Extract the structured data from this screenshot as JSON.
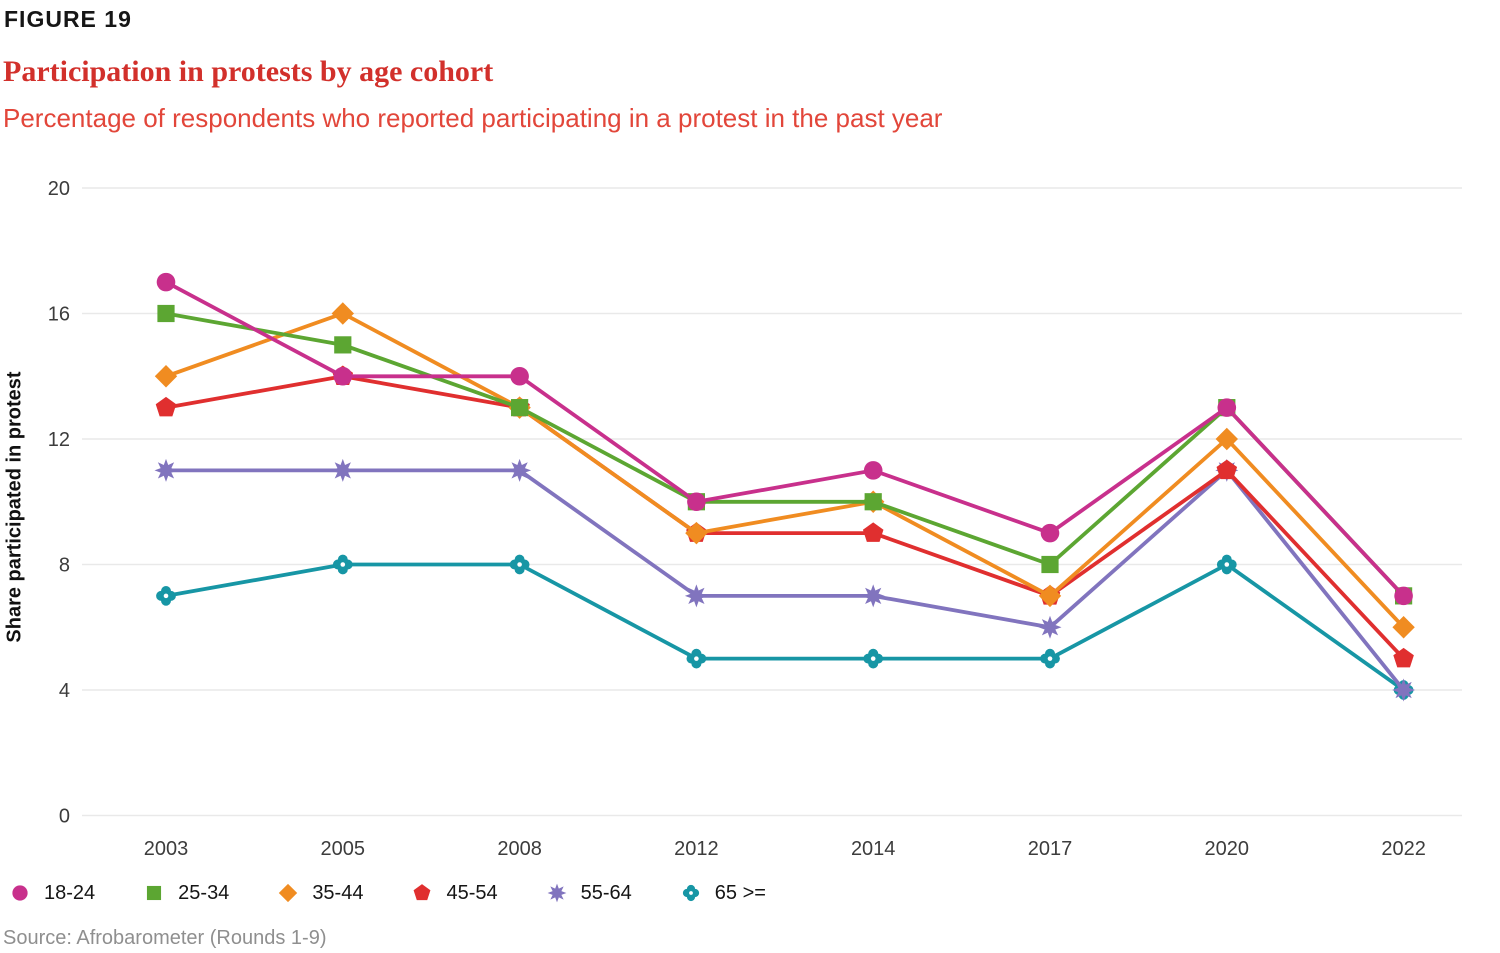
{
  "figure_label": "FIGURE 19",
  "title": "Participation in protests by age cohort",
  "subtitle": "Percentage of respondents who reported participating in a protest in the past year",
  "source": "Source: Afrobarometer (Rounds 1-9)",
  "colors": {
    "title_red": "#d2302b",
    "subtitle_red": "#e2463a",
    "grid": "#e9e9e9",
    "axis_text": "#3c3c3c",
    "source_gray": "#8f8f8f"
  },
  "chart_data": {
    "type": "line",
    "title": "Participation in protests by age cohort",
    "subtitle": "Percentage of respondents who reported participating in a protest in the past year",
    "x": [
      "2003",
      "2005",
      "2008",
      "2012",
      "2014",
      "2017",
      "2020",
      "2022"
    ],
    "xlabel": "",
    "ylabel": "Share participated in protest",
    "ylim": [
      0,
      20
    ],
    "yticks": [
      0,
      4,
      8,
      12,
      16,
      20
    ],
    "grid": true,
    "legend_position": "bottom-left",
    "series": [
      {
        "name": "18-24",
        "marker": "circle",
        "marker_icon": "circle-marker-icon",
        "color": "#c8308c",
        "values": [
          17,
          14,
          14,
          10,
          11,
          9,
          13,
          7
        ]
      },
      {
        "name": "25-34",
        "marker": "square",
        "marker_icon": "square-marker-icon",
        "color": "#5ca632",
        "values": [
          16,
          15,
          13,
          10,
          10,
          8,
          13,
          7
        ]
      },
      {
        "name": "35-44",
        "marker": "diamond",
        "marker_icon": "diamond-marker-icon",
        "color": "#f08c21",
        "values": [
          14,
          16,
          13,
          9,
          10,
          7,
          12,
          6
        ]
      },
      {
        "name": "45-54",
        "marker": "pentagon",
        "marker_icon": "pentagon-marker-icon",
        "color": "#e02f2f",
        "values": [
          13,
          14,
          13,
          9,
          9,
          7,
          11,
          5
        ]
      },
      {
        "name": "55-64",
        "marker": "star8",
        "marker_icon": "star-marker-icon",
        "color": "#8174be",
        "values": [
          11,
          11,
          11,
          7,
          7,
          6,
          11,
          4
        ]
      },
      {
        "name": "65 >=",
        "marker": "clover",
        "marker_icon": "clover-marker-icon",
        "color": "#1796a5",
        "values": [
          7,
          8,
          8,
          5,
          5,
          5,
          8,
          4
        ]
      }
    ]
  }
}
